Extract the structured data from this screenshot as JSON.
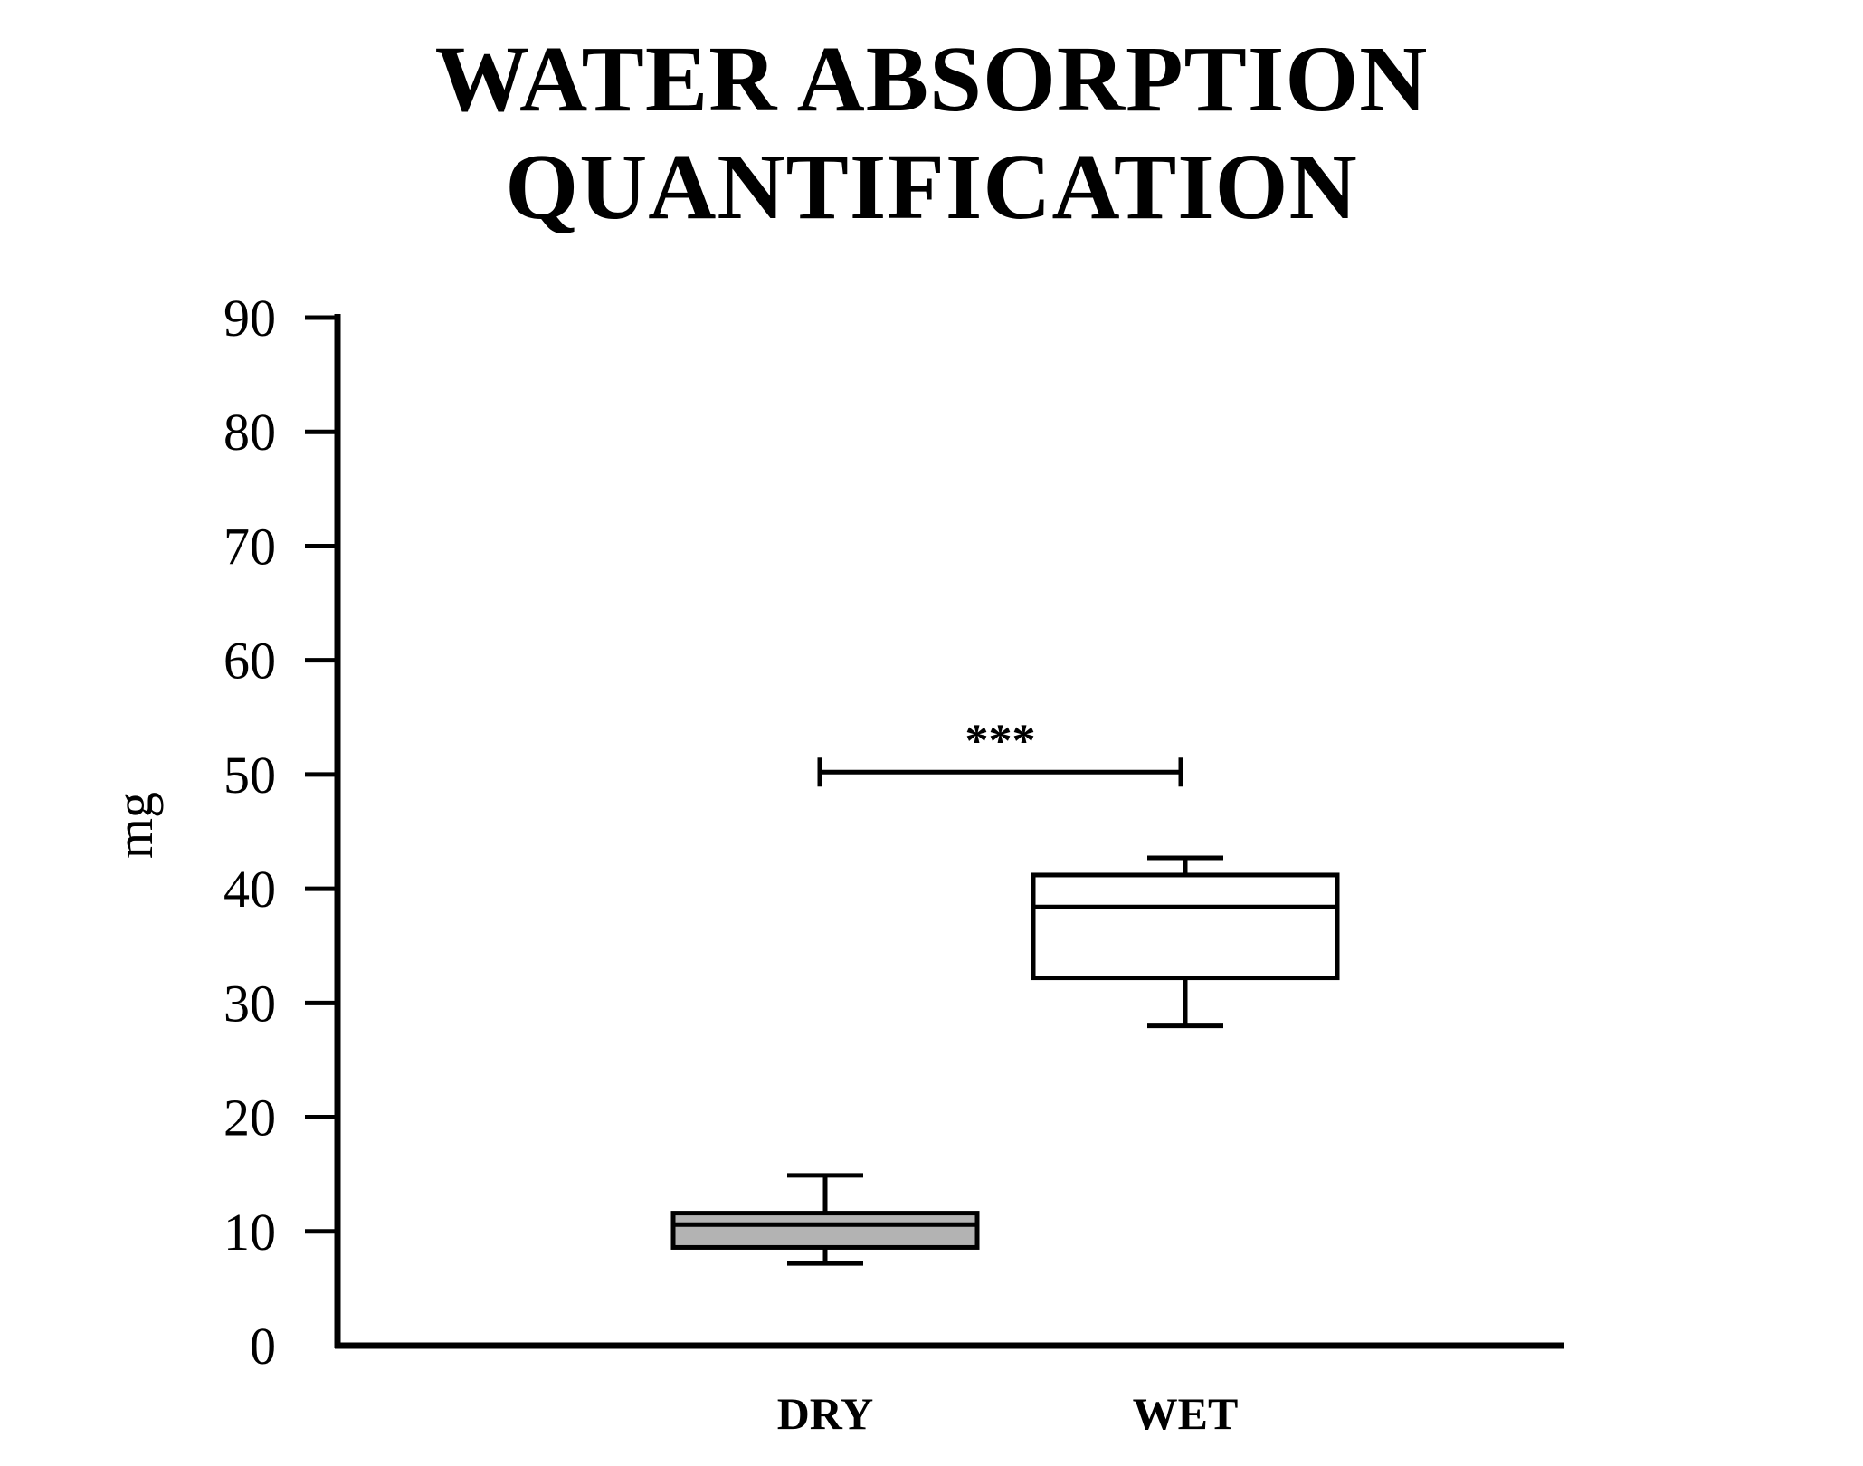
{
  "chart_data": {
    "type": "box",
    "title": "WATER ABSORPTION QUANTIFICATION",
    "xlabel": "",
    "ylabel": "mg",
    "ylim": [
      0,
      90
    ],
    "yticks": [
      0,
      10,
      20,
      30,
      40,
      50,
      60,
      70,
      80,
      90
    ],
    "grid": false,
    "categories": [
      "DRY",
      "WET"
    ],
    "boxes": [
      {
        "category": "DRY",
        "min": 7.2,
        "q1": 8.6,
        "median": 10.6,
        "q3": 11.6,
        "max": 14.9,
        "fill": "#b3b3b3"
      },
      {
        "category": "WET",
        "min": 28.0,
        "q1": 32.2,
        "median": 38.4,
        "q3": 41.2,
        "max": 42.7,
        "fill": "#ffffff"
      }
    ],
    "annotations": [
      {
        "text": "***",
        "from": "DRY",
        "to": "WET",
        "y": 51
      }
    ]
  }
}
